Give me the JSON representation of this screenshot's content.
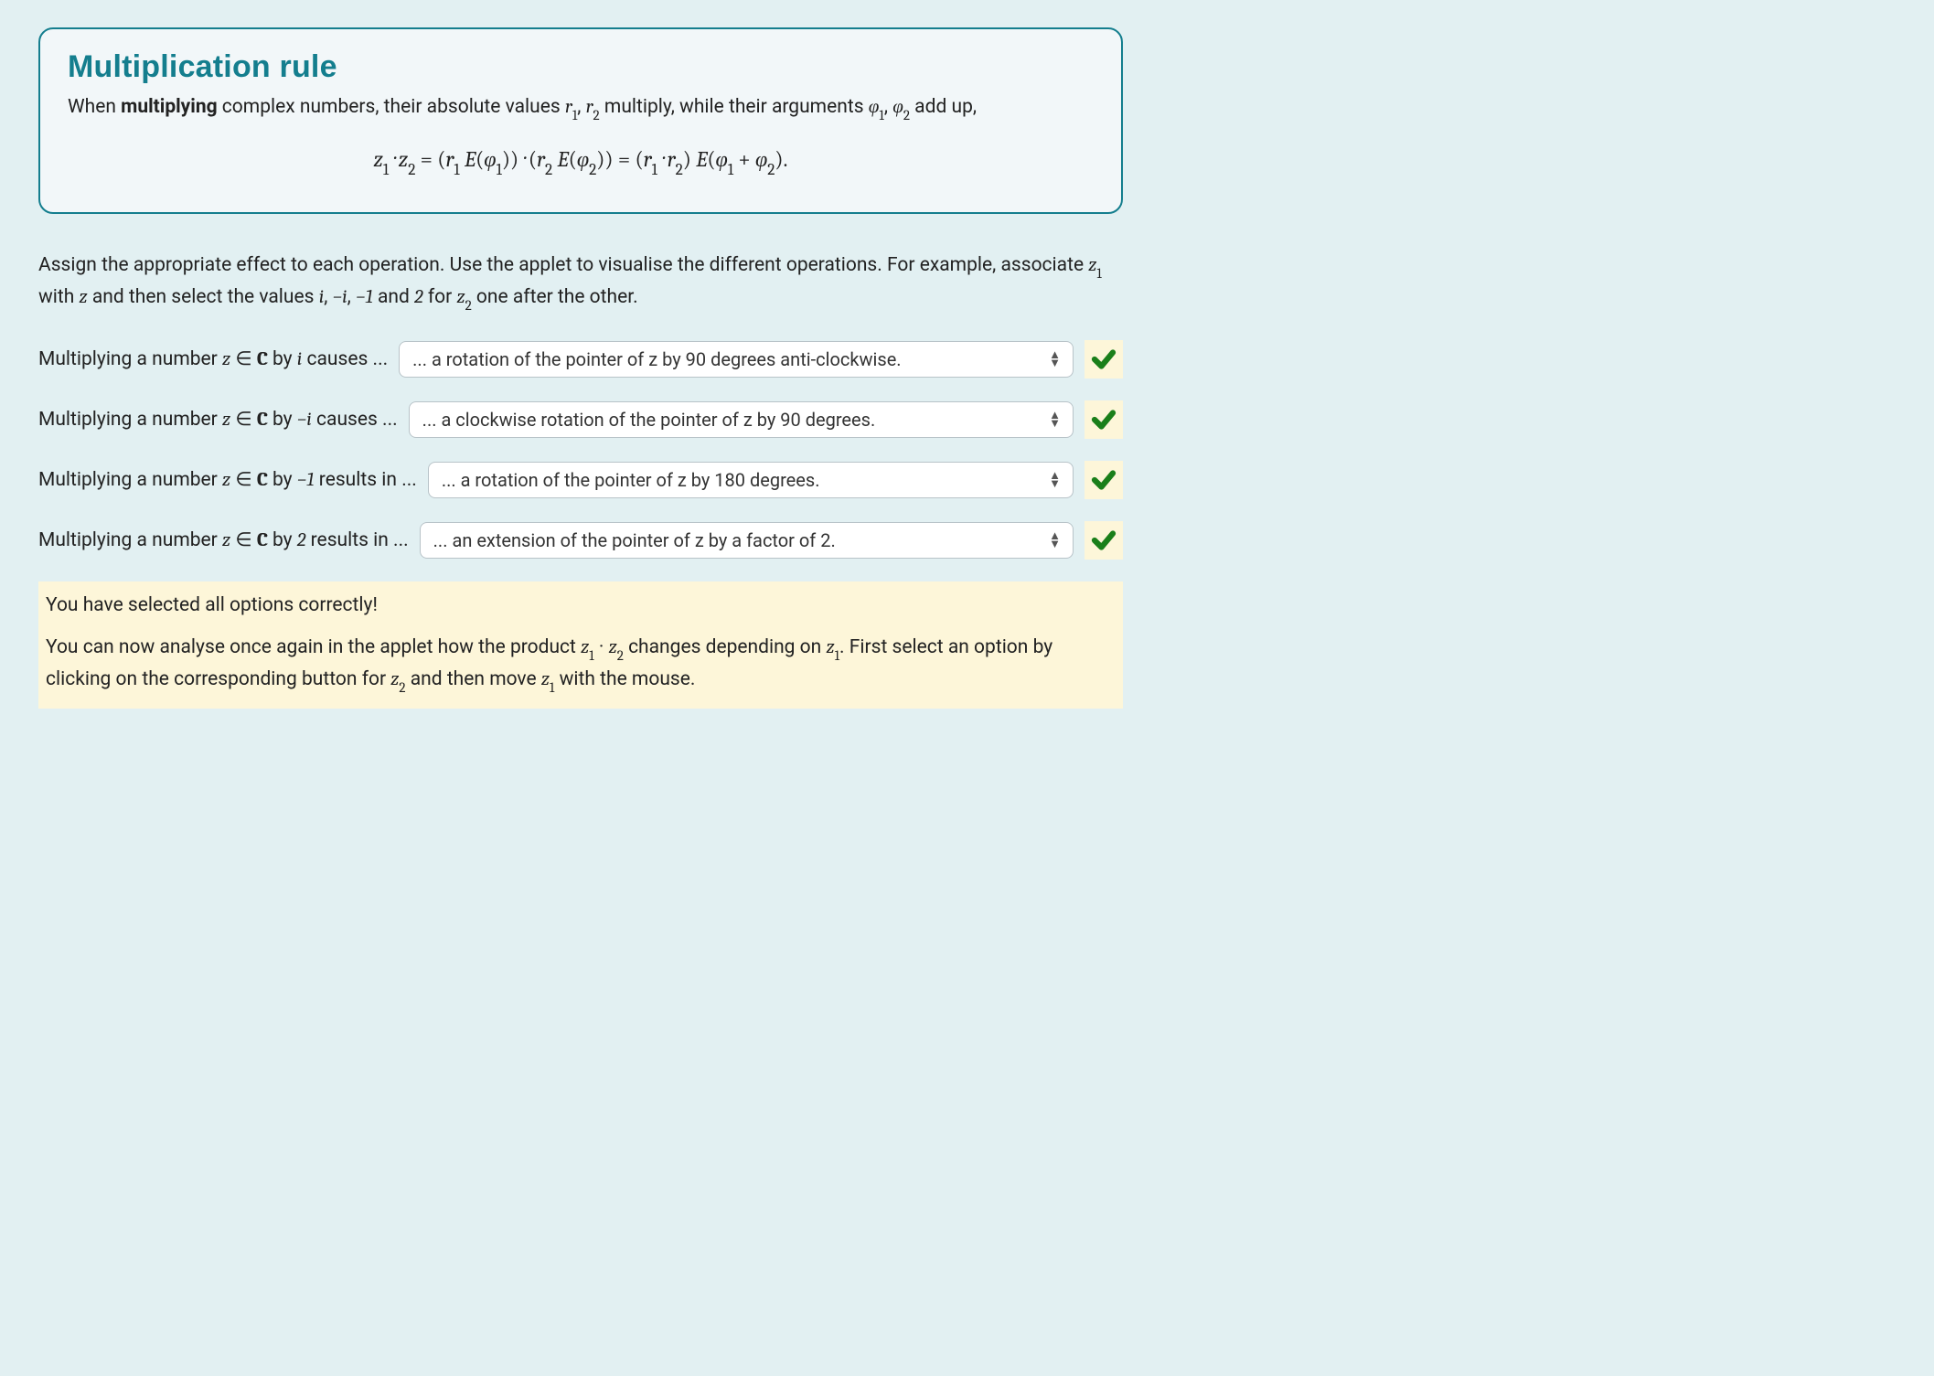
{
  "colors": {
    "page_background": "#e2f0f2",
    "box_background": "#f2f7f9",
    "box_border": "#147e8e",
    "title_color": "#147e8e",
    "select_border": "#b8c3c8",
    "feedback_background": "#fdf6d9",
    "check_color": "#1a7f1a",
    "text_color": "#222222"
  },
  "rule": {
    "title": "Multiplication rule",
    "text_prefix": "When ",
    "text_bold": "multiplying",
    "text_suffix": " complex numbers, their absolute values ",
    "r1": "r",
    "r1_sub": "1",
    "r2": "r",
    "r2_sub": "2",
    "text_middle": " multiply, while their arguments ",
    "phi1": "φ",
    "phi1_sub": "1",
    "phi2": "φ",
    "phi2_sub": "2",
    "text_end": " add up,",
    "formula_html": "z<sub>1</sub> · z<sub>2</sub> <span class='up'>=</span> <span class='up'>(</span>r<sub>1</sub> E<span class='up'>(</span>φ<sub>1</sub><span class='up'>))</span> · <span class='up'>(</span>r<sub>2</sub> E<span class='up'>(</span>φ<sub>2</sub><span class='up'>))</span> <span class='up'>=</span> <span class='up'>(</span>r<sub>1</sub> · r<sub>2</sub><span class='up'>)</span> E<span class='up'>(</span>φ<sub>1</sub> <span class='up'>+</span> φ<sub>2</sub><span class='up'>).</span>"
  },
  "instructions": {
    "line1": "Assign the appropriate effect to each operation. Use the applet to visualise the different operations. For example, associate ",
    "z1": "z",
    "z1_sub": "1",
    "with": " with ",
    "z": "z",
    "then": " and then select the values ",
    "v1": "i",
    "v2": "−i",
    "v3": "−1",
    "and": " and ",
    "v4": "2",
    "for": " for ",
    "z2": "z",
    "z2_sub": "2",
    "end": " one after the other."
  },
  "questions": [
    {
      "prompt_prefix": "Multiplying a number ",
      "var": "z",
      "in": " ∈ ",
      "set": "C",
      "by": " by ",
      "operand": "i",
      "suffix": " causes ...",
      "selected": "... a rotation of the pointer of z by 90 degrees anti-clockwise.",
      "correct": true
    },
    {
      "prompt_prefix": "Multiplying a number ",
      "var": "z",
      "in": " ∈ ",
      "set": "C",
      "by": " by ",
      "operand": "−i",
      "suffix": " causes ...",
      "selected": "... a clockwise rotation of the pointer of z by 90 degrees.",
      "correct": true
    },
    {
      "prompt_prefix": "Multiplying a number ",
      "var": "z",
      "in": " ∈ ",
      "set": "C",
      "by": " by ",
      "operand": "−1",
      "suffix": " results in ...",
      "selected": "... a rotation of the pointer of z by 180 degrees.",
      "correct": true
    },
    {
      "prompt_prefix": "Multiplying a number ",
      "var": "z",
      "in": " ∈ ",
      "set": "C",
      "by": " by ",
      "operand": "2",
      "suffix": " results in ...",
      "selected": "... an extension of the pointer of z by a factor of 2.",
      "correct": true
    }
  ],
  "feedback": {
    "line1": "You have selected all options correctly!",
    "line2_a": "You can now analyse once again in the applet how the product ",
    "z1": "z",
    "z1_sub": "1",
    "dot": " · ",
    "z2": "z",
    "z2_sub": "2",
    "line2_b": " changes depending on ",
    "z1b": "z",
    "z1b_sub": "1",
    "line2_c": ". First select an option by clicking on the corresponding button for ",
    "z2b": "z",
    "z2b_sub": "2",
    "line2_d": " and then move ",
    "z1c": "z",
    "z1c_sub": "1",
    "line2_e": " with the mouse."
  }
}
